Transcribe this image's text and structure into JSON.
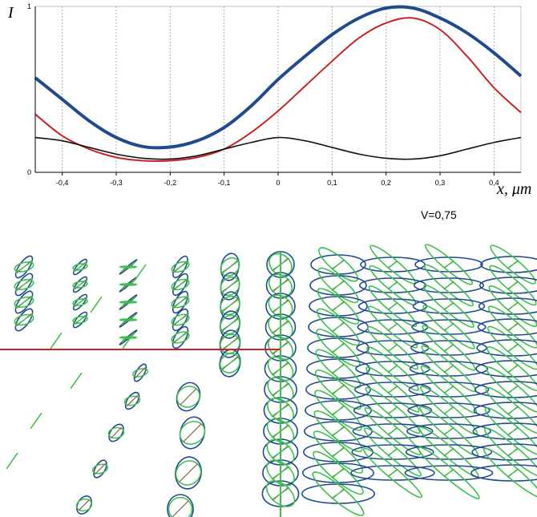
{
  "chart_data": [
    {
      "type": "line",
      "ylabel": "I",
      "xlabel": "x, μm",
      "xlim": [
        -0.45,
        0.45
      ],
      "ylim": [
        0,
        1.0
      ],
      "x_ticks": [
        "-0,4",
        "-0,3",
        "-0,2",
        "-0,1",
        "0",
        "0,1",
        "0,2",
        "0,3",
        "0,4"
      ],
      "x_tick_values": [
        -0.4,
        -0.3,
        -0.2,
        -0.1,
        0,
        0.1,
        0.2,
        0.3,
        0.4
      ],
      "y_ticks": [
        "0",
        "1"
      ],
      "y_tick_values": [
        0,
        1
      ],
      "grid": true,
      "series": [
        {
          "color": "#1f4b8e",
          "x": [
            -0.45,
            -0.4,
            -0.35,
            -0.3,
            -0.25,
            -0.2,
            -0.15,
            -0.1,
            -0.05,
            0,
            0.05,
            0.1,
            0.15,
            0.2,
            0.25,
            0.3,
            0.35,
            0.4,
            0.45
          ],
          "values": [
            0.57,
            0.44,
            0.31,
            0.21,
            0.155,
            0.152,
            0.19,
            0.27,
            0.4,
            0.56,
            0.7,
            0.83,
            0.93,
            0.99,
            0.99,
            0.93,
            0.84,
            0.72,
            0.58
          ]
        },
        {
          "color": "#cc2222",
          "x": [
            -0.45,
            -0.4,
            -0.35,
            -0.3,
            -0.25,
            -0.2,
            -0.15,
            -0.1,
            -0.05,
            0,
            0.05,
            0.1,
            0.15,
            0.2,
            0.25,
            0.3,
            0.35,
            0.4,
            0.45
          ],
          "values": [
            0.35,
            0.22,
            0.14,
            0.09,
            0.07,
            0.07,
            0.09,
            0.14,
            0.24,
            0.37,
            0.52,
            0.67,
            0.81,
            0.9,
            0.93,
            0.86,
            0.7,
            0.51,
            0.36
          ]
        },
        {
          "color": "#111111",
          "x": [
            -0.45,
            -0.4,
            -0.35,
            -0.3,
            -0.25,
            -0.2,
            -0.15,
            -0.1,
            -0.05,
            0,
            0.05,
            0.1,
            0.15,
            0.2,
            0.25,
            0.3,
            0.35,
            0.4,
            0.45
          ],
          "values": [
            0.21,
            0.19,
            0.15,
            0.11,
            0.085,
            0.08,
            0.1,
            0.14,
            0.18,
            0.21,
            0.19,
            0.15,
            0.11,
            0.085,
            0.08,
            0.1,
            0.14,
            0.18,
            0.21
          ]
        }
      ]
    },
    {
      "type": "polarization-ellipse-field",
      "title": "V=0,75",
      "colors": {
        "ellipse": "#1f4b8e",
        "green": "#3cc04c",
        "brown": "#8a6a44",
        "axis_red": "#cc2222",
        "axis_green": "#3cc04c"
      }
    }
  ]
}
